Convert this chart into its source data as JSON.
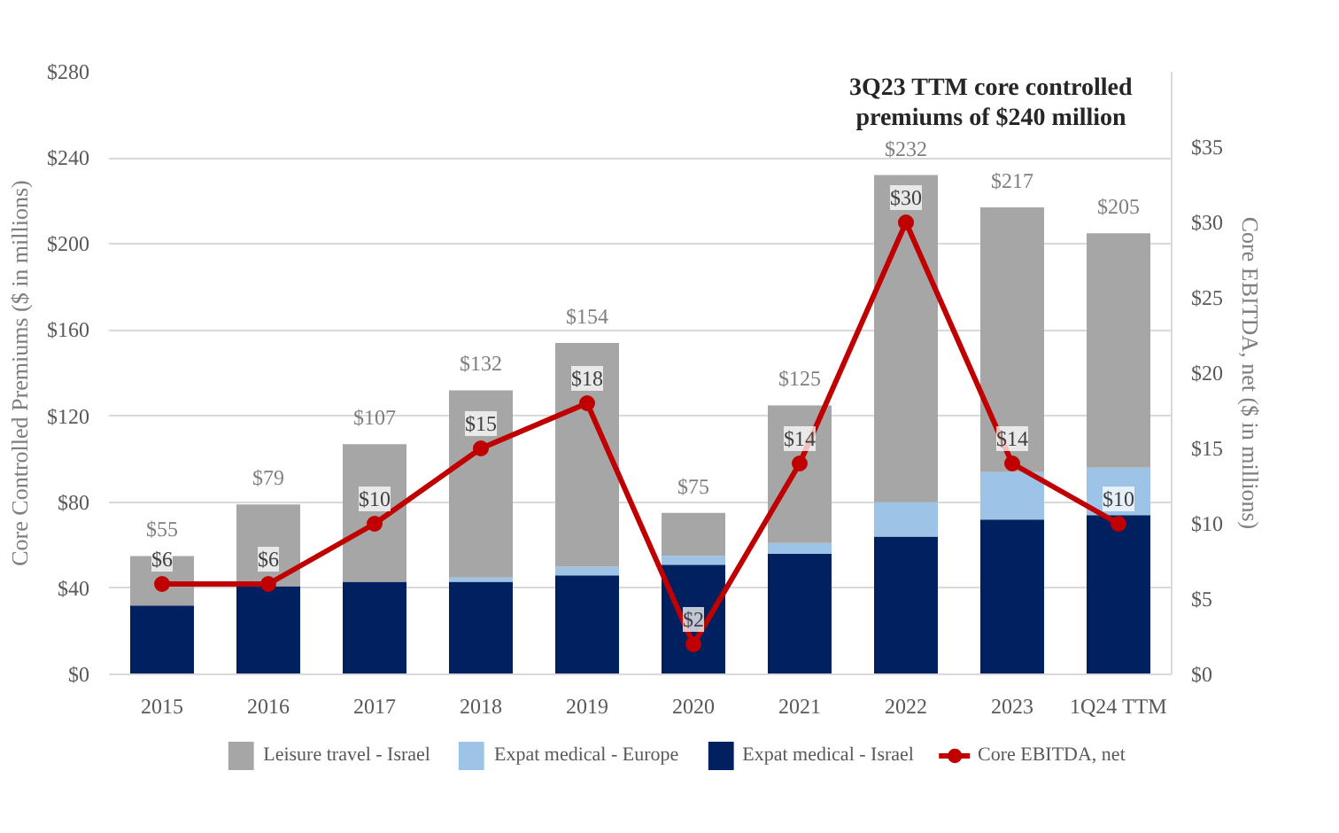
{
  "chart_data": {
    "type": "bar",
    "stacked": true,
    "categories": [
      "2015",
      "2016",
      "2017",
      "2018",
      "2019",
      "2020",
      "2021",
      "2022",
      "2023",
      "1Q24 TTM"
    ],
    "ylabel": "Core Controlled Premiums ($ in millions)",
    "y2label": "Core EBITDA, net ($ in millions)",
    "ylim": [
      0,
      280
    ],
    "yticks": [
      {
        "value": 0,
        "label": "$0"
      },
      {
        "value": 40,
        "label": "$40"
      },
      {
        "value": 80,
        "label": "$80"
      },
      {
        "value": 120,
        "label": "$120"
      },
      {
        "value": 160,
        "label": "$160"
      },
      {
        "value": 200,
        "label": "$200"
      },
      {
        "value": 240,
        "label": "$240"
      },
      {
        "value": 280,
        "label": "$280"
      }
    ],
    "y2lim": [
      0,
      40
    ],
    "y2ticks": [
      {
        "value": 0,
        "label": "$0"
      },
      {
        "value": 5,
        "label": "$5"
      },
      {
        "value": 10,
        "label": "$10"
      },
      {
        "value": 15,
        "label": "$15"
      },
      {
        "value": 20,
        "label": "$20"
      },
      {
        "value": 25,
        "label": "$25"
      },
      {
        "value": 30,
        "label": "$30"
      },
      {
        "value": 35,
        "label": "$35"
      }
    ],
    "series": [
      {
        "name": "Expat medical - Israel",
        "color": "#002060",
        "values": [
          32,
          41,
          43,
          43,
          46,
          51,
          56,
          64,
          72,
          74
        ]
      },
      {
        "name": "Expat medical - Europe",
        "color": "#9dc3e6",
        "values": [
          0,
          0,
          0,
          2,
          4,
          4,
          5,
          16,
          22,
          22
        ]
      },
      {
        "name": "Leisure travel - Israel",
        "color": "#a6a6a6",
        "values": [
          23,
          38,
          64,
          87,
          104,
          20,
          64,
          152,
          123,
          109
        ]
      },
      {
        "name": "Core EBITDA, net",
        "type": "line",
        "axis": "y2",
        "color": "#c00000",
        "marker": "circle",
        "values": [
          6,
          6,
          10,
          15,
          18,
          2,
          14,
          30,
          14,
          10
        ],
        "value_labels": [
          "$6",
          "$6",
          "$10",
          "$15",
          "$18",
          "$2",
          "$14",
          "$30",
          "$14",
          "$10"
        ]
      }
    ],
    "totals": [
      "$55",
      "$79",
      "$107",
      "$132",
      "$154",
      "$75",
      "$125",
      "$232",
      "$217",
      "$205"
    ],
    "annotations": [
      "3Q23 TTM core controlled\npremiums of $240 million"
    ],
    "grid": "y",
    "legend": "bottom"
  }
}
